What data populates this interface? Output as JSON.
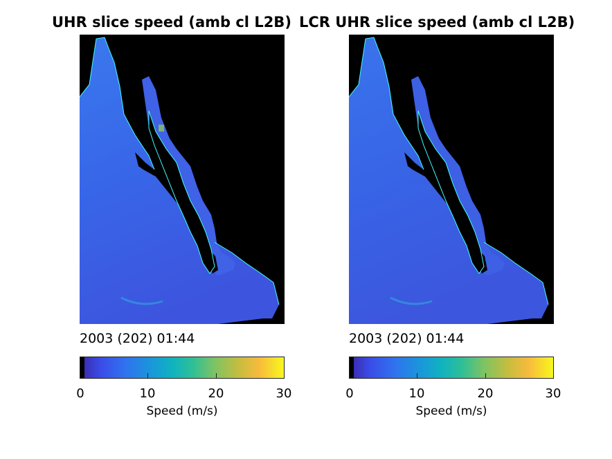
{
  "panels": [
    {
      "title": "UHR slice speed (amb cl L2B)",
      "timestamp": "2003 (202) 01:44",
      "colorbar": {
        "ticks": [
          "0",
          "10",
          "20",
          "30"
        ],
        "label": "Speed (m/s)",
        "range": [
          0,
          30
        ]
      }
    },
    {
      "title": "LCR UHR slice speed (amb cl L2B)",
      "timestamp": "2003 (202) 01:44",
      "colorbar": {
        "ticks": [
          "0",
          "10",
          "20",
          "30"
        ],
        "label": "Speed (m/s)",
        "range": [
          0,
          30
        ]
      }
    }
  ],
  "colormap": "parula",
  "colors": {
    "background": "#000000",
    "land": "#000000",
    "coastline": "#40ffff"
  }
}
